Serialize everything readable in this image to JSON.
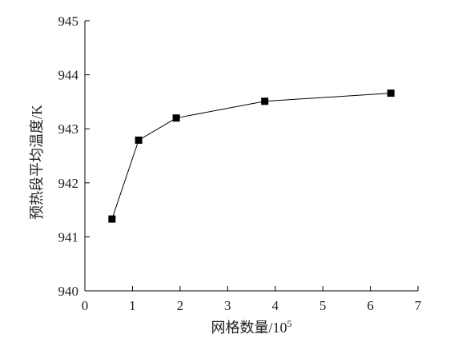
{
  "chart_data": {
    "type": "line",
    "title": "",
    "xlabel": "网格数量/10",
    "xlabel_exponent": "5",
    "ylabel": "预热段平均温度/K",
    "xlim": [
      0,
      7
    ],
    "ylim": [
      940,
      945
    ],
    "x_ticks": [
      "0",
      "1",
      "2",
      "3",
      "4",
      "5",
      "6",
      "7"
    ],
    "y_ticks": [
      "940",
      "941",
      "942",
      "943",
      "944",
      "945"
    ],
    "grid": false,
    "legend": "none",
    "series": [
      {
        "x": [
          0.57,
          1.13,
          1.92,
          3.78,
          6.43
        ],
        "values": [
          941.33,
          942.79,
          943.2,
          943.51,
          943.66
        ],
        "marker": "square",
        "color": "#000000"
      }
    ]
  }
}
